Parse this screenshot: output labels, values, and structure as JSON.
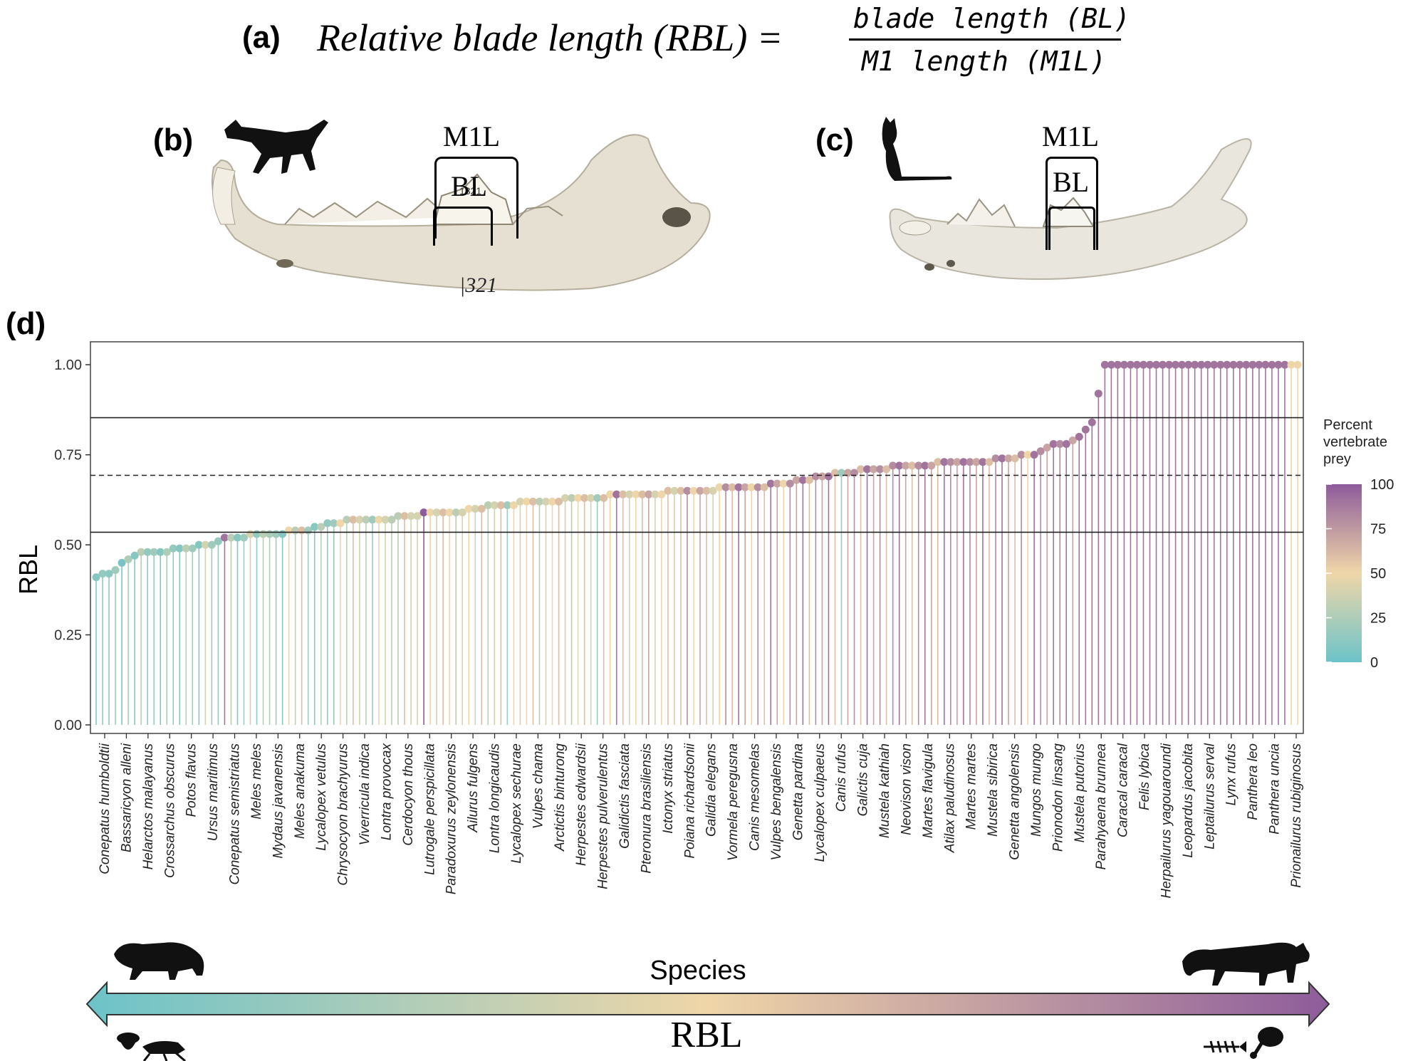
{
  "panels": {
    "a": {
      "label": "(a)",
      "formula_lhs": "Relative blade length (RBL) =",
      "numerator": "blade length (BL)",
      "denominator": "M1 length (M1L)"
    },
    "b": {
      "label": "(b)",
      "m1l": "M1L",
      "bl": "BL",
      "specimen_number": "1321",
      "jaw_number": "|321"
    },
    "c": {
      "label": "(c)",
      "m1l": "M1L",
      "bl": "BL"
    },
    "d": {
      "label": "(d)"
    }
  },
  "bottom_bar": {
    "species_label": "Species",
    "rbl_label": "RBL"
  },
  "icons": {
    "left_animal": "civet-silhouette-icon",
    "right_animal": "cougar-silhouette-icon",
    "wolf": "wolf-silhouette-icon",
    "cat": "cat-silhouette-icon",
    "acorn": "acorn-icon",
    "cricket": "cricket-icon",
    "fish": "fish-skeleton-icon",
    "drumstick": "drumstick-icon"
  },
  "colors": {
    "low": "#6cc3c9",
    "mid": "#efd6a8",
    "high": "#8e5c9b",
    "frame": "#444444"
  },
  "chart_data": {
    "type": "lollipop",
    "ylabel": "RBL",
    "xlabel": "Species",
    "ylim": [
      0,
      1.04
    ],
    "yticks": [
      "0.00",
      "0.25",
      "0.50",
      "0.75",
      "1.00"
    ],
    "reference_lines": [
      {
        "y": 0.535,
        "style": "solid"
      },
      {
        "y": 0.693,
        "style": "dashed"
      },
      {
        "y": 0.853,
        "style": "solid"
      }
    ],
    "legend": {
      "title": "Percent vertebrate prey",
      "ticks": [
        "100",
        "75",
        "50",
        "25",
        "0"
      ]
    },
    "labeled_species": [
      "Conepatus humboldtii",
      "Bassaricyon alleni",
      "Helarctos malayanus",
      "Crossarchus obscurus",
      "Potos flavus",
      "Ursus maritimus",
      "Conepatus semistriatus",
      "Meles meles",
      "Mydaus javanensis",
      "Meles anakuma",
      "Lycalopex vetulus",
      "Chrysocyon brachyurus",
      "Viverricula indica",
      "Lontra provocax",
      "Cerdocyon thous",
      "Lutrogale perspicillata",
      "Paradoxurus zeylonensis",
      "Ailurus fulgens",
      "Lontra longicaudis",
      "Lycalopex sechurae",
      "Vulpes chama",
      "Arctictis binturong",
      "Herpestes edwardsii",
      "Herpestes pulverulentus",
      "Galidictis fasciata",
      "Pteronura brasiliensis",
      "Ictonyx striatus",
      "Poiana richardsonii",
      "Galidia elegans",
      "Vormela peregusna",
      "Canis mesomelas",
      "Vulpes bengalensis",
      "Genetta pardina",
      "Lycalopex culpaeus",
      "Canis rufus",
      "Galictis cuja",
      "Mustela kathiah",
      "Neovison vison",
      "Martes flavigula",
      "Atilax paludinosus",
      "Martes martes",
      "Mustela sibirica",
      "Genetta angolensis",
      "Mungos mungo",
      "Prionodon linsang",
      "Mustela putorius",
      "Parahyaena brunnea",
      "Caracal caracal",
      "Felis lybica",
      "Herpailurus yagouaroundi",
      "Leopardus jacobita",
      "Leptailurus serval",
      "Lynx rufus",
      "Panthera leo",
      "Panthera uncia",
      "Prionailurus rubiginosus"
    ],
    "rbl_values": [
      0.41,
      0.42,
      0.42,
      0.43,
      0.45,
      0.46,
      0.47,
      0.48,
      0.48,
      0.48,
      0.48,
      0.48,
      0.49,
      0.49,
      0.49,
      0.49,
      0.5,
      0.5,
      0.5,
      0.51,
      0.52,
      0.52,
      0.52,
      0.52,
      0.53,
      0.53,
      0.53,
      0.53,
      0.53,
      0.53,
      0.54,
      0.54,
      0.54,
      0.54,
      0.55,
      0.55,
      0.56,
      0.56,
      0.56,
      0.57,
      0.57,
      0.57,
      0.57,
      0.57,
      0.57,
      0.57,
      0.57,
      0.58,
      0.58,
      0.58,
      0.58,
      0.59,
      0.59,
      0.59,
      0.59,
      0.59,
      0.59,
      0.59,
      0.6,
      0.6,
      0.6,
      0.61,
      0.61,
      0.61,
      0.61,
      0.61,
      0.62,
      0.62,
      0.62,
      0.62,
      0.62,
      0.62,
      0.62,
      0.63,
      0.63,
      0.63,
      0.63,
      0.63,
      0.63,
      0.63,
      0.64,
      0.64,
      0.64,
      0.64,
      0.64,
      0.64,
      0.64,
      0.64,
      0.64,
      0.65,
      0.65,
      0.65,
      0.65,
      0.65,
      0.65,
      0.65,
      0.65,
      0.66,
      0.66,
      0.66,
      0.66,
      0.66,
      0.66,
      0.66,
      0.66,
      0.67,
      0.67,
      0.67,
      0.67,
      0.68,
      0.68,
      0.68,
      0.69,
      0.69,
      0.69,
      0.7,
      0.7,
      0.7,
      0.7,
      0.71,
      0.71,
      0.71,
      0.71,
      0.71,
      0.72,
      0.72,
      0.72,
      0.72,
      0.72,
      0.72,
      0.72,
      0.73,
      0.73,
      0.73,
      0.73,
      0.73,
      0.73,
      0.73,
      0.73,
      0.73,
      0.74,
      0.74,
      0.74,
      0.74,
      0.75,
      0.75,
      0.75,
      0.76,
      0.77,
      0.78,
      0.78,
      0.78,
      0.79,
      0.8,
      0.82,
      0.84,
      0.92,
      1.0,
      1.0,
      1.0,
      1.0,
      1.0,
      1.0,
      1.0,
      1.0,
      1.0,
      1.0,
      1.0,
      1.0,
      1.0,
      1.0,
      1.0,
      1.0,
      1.0,
      1.0,
      1.0,
      1.0,
      1.0,
      1.0,
      1.0,
      1.0,
      1.0,
      1.0,
      1.0,
      1.0,
      1.0,
      1.0,
      1.0
    ],
    "vertebrate_prey_pct": [
      10,
      15,
      12,
      20,
      5,
      25,
      10,
      30,
      15,
      20,
      10,
      25,
      15,
      10,
      30,
      20,
      10,
      40,
      20,
      15,
      90,
      30,
      10,
      20,
      40,
      15,
      30,
      25,
      20,
      10,
      50,
      30,
      60,
      20,
      10,
      30,
      15,
      20,
      50,
      30,
      60,
      40,
      30,
      20,
      50,
      40,
      30,
      30,
      60,
      40,
      40,
      100,
      50,
      40,
      60,
      50,
      30,
      40,
      50,
      40,
      60,
      30,
      40,
      60,
      20,
      50,
      40,
      50,
      60,
      30,
      40,
      50,
      60,
      40,
      30,
      50,
      60,
      40,
      20,
      60,
      50,
      90,
      60,
      40,
      50,
      60,
      70,
      40,
      50,
      60,
      40,
      60,
      80,
      50,
      70,
      60,
      40,
      50,
      80,
      60,
      90,
      70,
      50,
      80,
      60,
      90,
      70,
      50,
      80,
      70,
      90,
      60,
      80,
      70,
      90,
      60,
      20,
      70,
      80,
      60,
      90,
      70,
      80,
      60,
      80,
      90,
      70,
      60,
      80,
      90,
      70,
      60,
      90,
      80,
      70,
      90,
      80,
      70,
      90,
      60,
      80,
      90,
      70,
      60,
      80,
      50,
      90,
      80,
      70,
      90,
      80,
      90,
      70,
      90,
      90,
      90,
      90,
      90,
      90,
      90,
      90,
      90,
      90,
      90,
      90,
      90,
      90,
      90,
      90,
      90,
      90,
      90,
      90,
      90,
      90,
      90,
      90,
      90,
      90,
      90,
      90,
      90,
      90,
      90,
      90,
      90
    ]
  }
}
